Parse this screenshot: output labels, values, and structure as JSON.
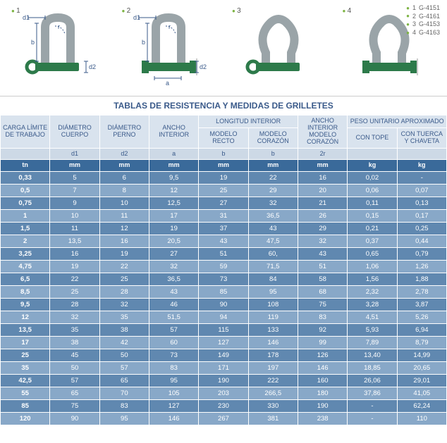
{
  "legend": [
    {
      "n": "1",
      "code": "G-4151"
    },
    {
      "n": "2",
      "code": "G-4161"
    },
    {
      "n": "3",
      "code": "G-4153"
    },
    {
      "n": "4",
      "code": "G-4163"
    }
  ],
  "diagrams": [
    "1",
    "2",
    "3",
    "4"
  ],
  "dim_labels": {
    "d1": "d1",
    "d2": "d2",
    "b": "b",
    "a": "a",
    "r": "r"
  },
  "colors": {
    "shackle_body": "#9aa4a8",
    "shackle_pin": "#2d7a4a",
    "dim_line": "#3a5a8a",
    "accent": "#7cb342",
    "header_bg": "#d9e3ee",
    "header_text": "#3a5a8a",
    "sub_bg": "#cdd9e6",
    "unit_bg": "#3a6a9a",
    "row_odd": "#6088b0",
    "row_even": "#88a8c8"
  },
  "title": "TABLAS DE RESISTENCIA Y MEDIDAS DE GRILLETES",
  "headers": {
    "carga": "CARGA LÍMITE DE TRABAJO",
    "diam_cuerpo": "DIÁMETRO CUERPO",
    "diam_perno": "DIÁMETRO PERNO",
    "ancho_int": "ANCHO INTERIOR",
    "long_int": "LONGITUD INTERIOR",
    "modelo_recto": "MODELO RECTO",
    "modelo_corazon": "MODELO CORAZÓN",
    "ancho_int_corazon": "ANCHO INTERIOR MODELO CORAZÓN",
    "peso": "PESO UNITARIO APROXIMADO",
    "con_tope": "CON TOPE",
    "con_tuerca": "CON TUERCA Y CHAVETA"
  },
  "sub": {
    "d1": "d1",
    "d2": "d2",
    "a": "a",
    "b": "b",
    "b2": "b",
    "r2": "2r"
  },
  "units": {
    "tn": "tn",
    "mm": "mm",
    "kg": "kg"
  },
  "rows": [
    [
      "0,33",
      "5",
      "6",
      "9,5",
      "19",
      "22",
      "16",
      "0,02",
      "-"
    ],
    [
      "0,5",
      "7",
      "8",
      "12",
      "25",
      "29",
      "20",
      "0,06",
      "0,07"
    ],
    [
      "0,75",
      "9",
      "10",
      "12,5",
      "27",
      "32",
      "21",
      "0,11",
      "0,13"
    ],
    [
      "1",
      "10",
      "11",
      "17",
      "31",
      "36,5",
      "26",
      "0,15",
      "0,17"
    ],
    [
      "1,5",
      "11",
      "12",
      "19",
      "37",
      "43",
      "29",
      "0,21",
      "0,25"
    ],
    [
      "2",
      "13,5",
      "16",
      "20,5",
      "43",
      "47,5",
      "32",
      "0,37",
      "0,44"
    ],
    [
      "3,25",
      "16",
      "19",
      "27",
      "51",
      "60,",
      "43",
      "0,65",
      "0,79"
    ],
    [
      "4,75",
      "19",
      "22",
      "32",
      "59",
      "71,5",
      "51",
      "1,06",
      "1,26"
    ],
    [
      "6,5",
      "22",
      "25",
      "36,5",
      "73",
      "84",
      "58",
      "1,56",
      "1,88"
    ],
    [
      "8,5",
      "25",
      "28",
      "43",
      "85",
      "95",
      "68",
      "2,32",
      "2,78"
    ],
    [
      "9,5",
      "28",
      "32",
      "46",
      "90",
      "108",
      "75",
      "3,28",
      "3,87"
    ],
    [
      "12",
      "32",
      "35",
      "51,5",
      "94",
      "119",
      "83",
      "4,51",
      "5,26"
    ],
    [
      "13,5",
      "35",
      "38",
      "57",
      "115",
      "133",
      "92",
      "5,93",
      "6,94"
    ],
    [
      "17",
      "38",
      "42",
      "60",
      "127",
      "146",
      "99",
      "7,89",
      "8,79"
    ],
    [
      "25",
      "45",
      "50",
      "73",
      "149",
      "178",
      "126",
      "13,40",
      "14,99"
    ],
    [
      "35",
      "50",
      "57",
      "83",
      "171",
      "197",
      "146",
      "18,85",
      "20,65"
    ],
    [
      "42,5",
      "57",
      "65",
      "95",
      "190",
      "222",
      "160",
      "26,06",
      "29,01"
    ],
    [
      "55",
      "65",
      "70",
      "105",
      "203",
      "266,5",
      "180",
      "37,86",
      "41,05"
    ],
    [
      "85",
      "75",
      "83",
      "127",
      "230",
      "330",
      "190",
      "-",
      "62,24"
    ],
    [
      "120",
      "90",
      "95",
      "146",
      "267",
      "381",
      "238",
      "-",
      "110"
    ]
  ]
}
